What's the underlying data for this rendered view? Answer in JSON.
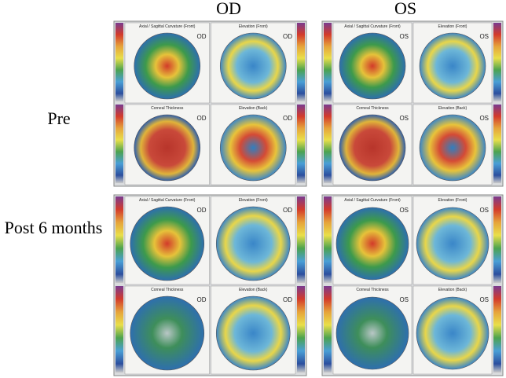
{
  "columns": [
    "OD",
    "OS"
  ],
  "rows": [
    "Pre",
    "Post 6 months"
  ],
  "map_titles": [
    "Axial / Sagittal Curvature (Front)",
    "Elevation (Front)",
    "Corneal Thickness",
    "Elevation (Back)"
  ]
}
